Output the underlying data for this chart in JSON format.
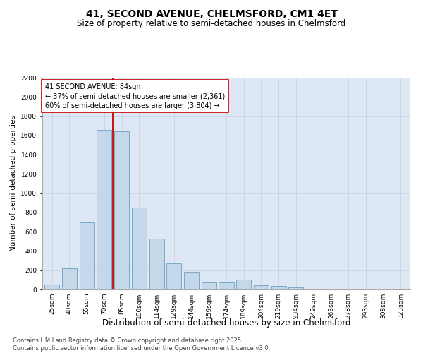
{
  "title": "41, SECOND AVENUE, CHELMSFORD, CM1 4ET",
  "subtitle": "Size of property relative to semi-detached houses in Chelmsford",
  "xlabel": "Distribution of semi-detached houses by size in Chelmsford",
  "ylabel": "Number of semi-detached properties",
  "categories": [
    "25sqm",
    "40sqm",
    "55sqm",
    "70sqm",
    "85sqm",
    "100sqm",
    "114sqm",
    "129sqm",
    "144sqm",
    "159sqm",
    "174sqm",
    "189sqm",
    "204sqm",
    "219sqm",
    "234sqm",
    "249sqm",
    "263sqm",
    "278sqm",
    "293sqm",
    "308sqm",
    "323sqm"
  ],
  "values": [
    50,
    220,
    700,
    1660,
    1640,
    850,
    530,
    270,
    180,
    75,
    75,
    100,
    45,
    35,
    20,
    5,
    5,
    0,
    10,
    0,
    0
  ],
  "bar_color": "#c5d8ea",
  "bar_edge_color": "#7aaac8",
  "vline_x_pos": 3.5,
  "vline_color": "#cc0000",
  "annotation_text": "41 SECOND AVENUE: 84sqm\n← 37% of semi-detached houses are smaller (2,361)\n60% of semi-detached houses are larger (3,804) →",
  "annotation_box_facecolor": "#ffffff",
  "annotation_box_edgecolor": "#cc0000",
  "ylim": [
    0,
    2200
  ],
  "yticks": [
    0,
    200,
    400,
    600,
    800,
    1000,
    1200,
    1400,
    1600,
    1800,
    2000,
    2200
  ],
  "grid_color": "#c8d4e4",
  "bg_color": "#dde8f4",
  "footnote": "Contains HM Land Registry data © Crown copyright and database right 2025.\nContains public sector information licensed under the Open Government Licence v3.0.",
  "title_fontsize": 10,
  "subtitle_fontsize": 8.5,
  "xlabel_fontsize": 8.5,
  "ylabel_fontsize": 7.5,
  "tick_fontsize": 6.5,
  "annot_fontsize": 7,
  "footnote_fontsize": 6
}
